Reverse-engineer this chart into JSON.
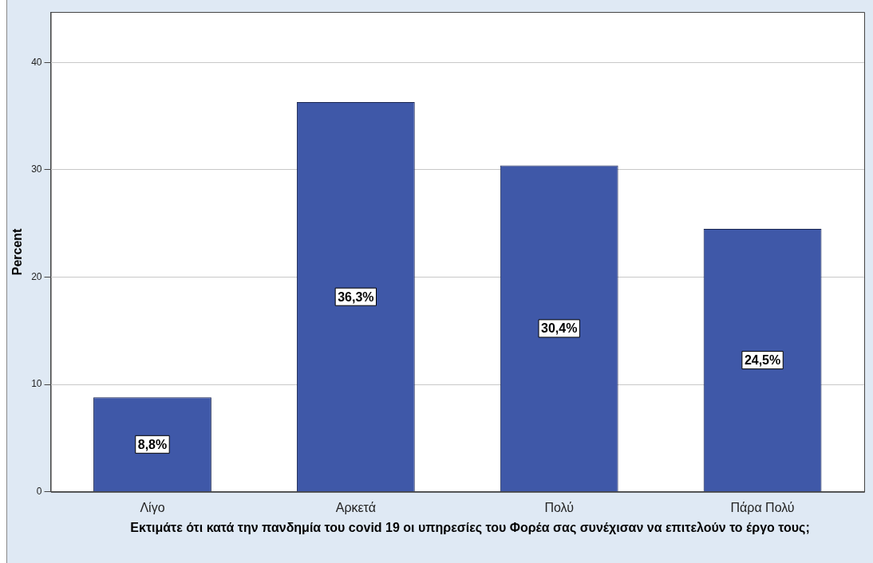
{
  "chart_data": {
    "type": "bar",
    "xlabel": "Εκτιμάτε ότι κατά την πανδημία του covid 19 οι υπηρεσίες του Φορέα σας συνέχισαν να επιτελούν το έργο τους;",
    "ylabel": "Percent",
    "categories": [
      "Λίγο",
      "Αρκετά",
      "Πολύ",
      "Πάρα Πολύ"
    ],
    "values": [
      8.8,
      36.3,
      30.4,
      24.5
    ],
    "value_labels": [
      "8,8%",
      "36,3%",
      "30,4%",
      "24,5%"
    ],
    "color": "#3f58a8",
    "ylim": [
      0,
      44.7
    ],
    "yticks": [
      0,
      10,
      20,
      30,
      40
    ],
    "grid": "y",
    "legend": false
  }
}
